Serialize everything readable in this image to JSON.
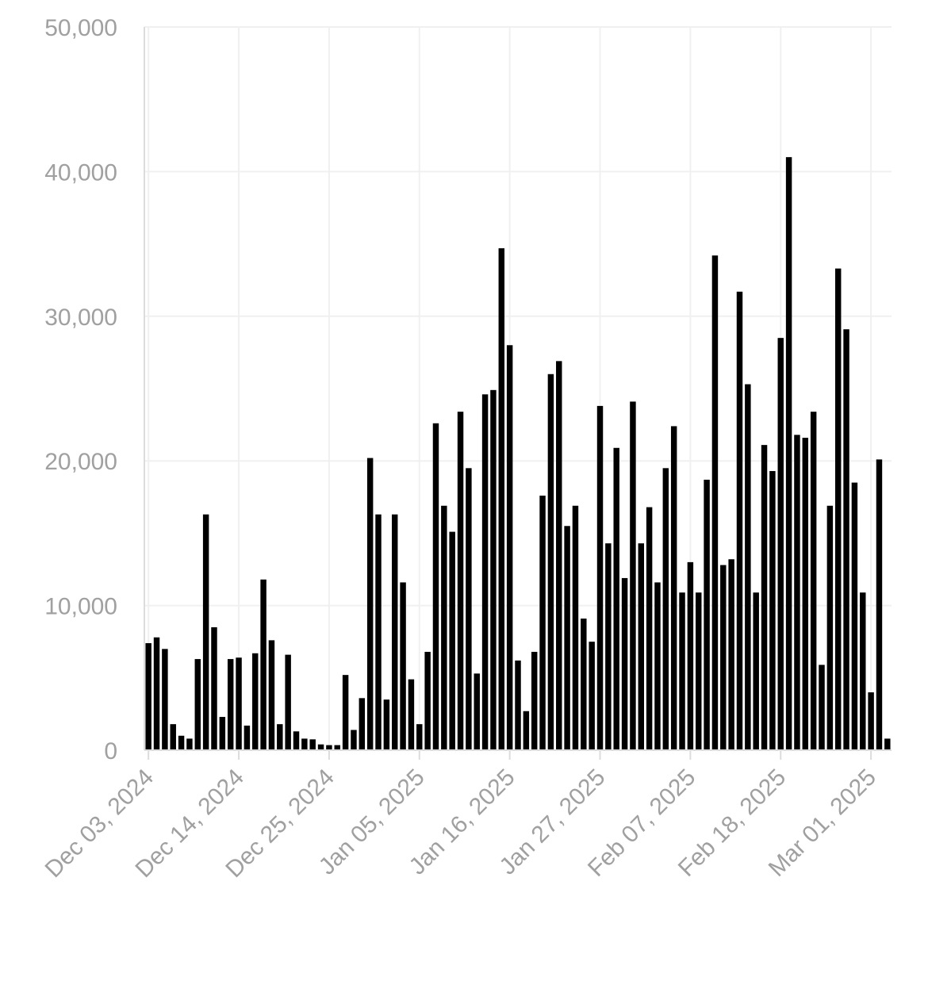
{
  "chart_data": {
    "type": "bar",
    "title": "",
    "xlabel": "",
    "ylabel": "",
    "ylim": [
      0,
      50000
    ],
    "grid": true,
    "legend": "none",
    "bar_color": "#000000",
    "yticks": [
      {
        "value": 0,
        "label": "0"
      },
      {
        "value": 10000,
        "label": "10,000"
      },
      {
        "value": 20000,
        "label": "20,000"
      },
      {
        "value": 30000,
        "label": "30,000"
      },
      {
        "value": 40000,
        "label": "40,000"
      },
      {
        "value": 50000,
        "label": "50,000"
      }
    ],
    "xticks": [
      {
        "date": "2024-12-03",
        "label": "Dec 03, 2024"
      },
      {
        "date": "2024-12-14",
        "label": "Dec 14, 2024"
      },
      {
        "date": "2024-12-25",
        "label": "Dec 25, 2024"
      },
      {
        "date": "2025-01-05",
        "label": "Jan 05, 2025"
      },
      {
        "date": "2025-01-16",
        "label": "Jan 16, 2025"
      },
      {
        "date": "2025-01-27",
        "label": "Jan 27, 2025"
      },
      {
        "date": "2025-02-07",
        "label": "Feb 07, 2025"
      },
      {
        "date": "2025-02-18",
        "label": "Feb 18, 2025"
      },
      {
        "date": "2025-03-01",
        "label": "Mar 01, 2025"
      }
    ],
    "series": [
      {
        "data": [
          [
            "2024-12-03",
            7400
          ],
          [
            "2024-12-04",
            7800
          ],
          [
            "2024-12-05",
            7000
          ],
          [
            "2024-12-06",
            1800
          ],
          [
            "2024-12-07",
            1000
          ],
          [
            "2024-12-08",
            800
          ],
          [
            "2024-12-09",
            6300
          ],
          [
            "2024-12-10",
            16300
          ],
          [
            "2024-12-11",
            8500
          ],
          [
            "2024-12-12",
            2300
          ],
          [
            "2024-12-13",
            6300
          ],
          [
            "2024-12-14",
            6400
          ],
          [
            "2024-12-15",
            1700
          ],
          [
            "2024-12-16",
            6700
          ],
          [
            "2024-12-17",
            11800
          ],
          [
            "2024-12-18",
            7600
          ],
          [
            "2024-12-19",
            1800
          ],
          [
            "2024-12-20",
            6600
          ],
          [
            "2024-12-21",
            1300
          ],
          [
            "2024-12-22",
            800
          ],
          [
            "2024-12-23",
            750
          ],
          [
            "2024-12-24",
            400
          ],
          [
            "2024-12-25",
            350
          ],
          [
            "2024-12-26",
            350
          ],
          [
            "2024-12-27",
            5200
          ],
          [
            "2024-12-28",
            1400
          ],
          [
            "2024-12-29",
            3600
          ],
          [
            "2024-12-30",
            20200
          ],
          [
            "2024-12-31",
            16300
          ],
          [
            "2025-01-01",
            3500
          ],
          [
            "2025-01-02",
            16300
          ],
          [
            "2025-01-03",
            11600
          ],
          [
            "2025-01-04",
            4900
          ],
          [
            "2025-01-05",
            1800
          ],
          [
            "2025-01-06",
            6800
          ],
          [
            "2025-01-07",
            22600
          ],
          [
            "2025-01-08",
            16900
          ],
          [
            "2025-01-09",
            15100
          ],
          [
            "2025-01-10",
            23400
          ],
          [
            "2025-01-11",
            19500
          ],
          [
            "2025-01-12",
            5300
          ],
          [
            "2025-01-13",
            24600
          ],
          [
            "2025-01-14",
            24900
          ],
          [
            "2025-01-15",
            34700
          ],
          [
            "2025-01-16",
            28000
          ],
          [
            "2025-01-17",
            6200
          ],
          [
            "2025-01-18",
            2700
          ],
          [
            "2025-01-19",
            6800
          ],
          [
            "2025-01-20",
            17600
          ],
          [
            "2025-01-21",
            26000
          ],
          [
            "2025-01-22",
            26900
          ],
          [
            "2025-01-23",
            15500
          ],
          [
            "2025-01-24",
            16900
          ],
          [
            "2025-01-25",
            9100
          ],
          [
            "2025-01-26",
            7500
          ],
          [
            "2025-01-27",
            23800
          ],
          [
            "2025-01-28",
            14300
          ],
          [
            "2025-01-29",
            20900
          ],
          [
            "2025-01-30",
            11900
          ],
          [
            "2025-01-31",
            24100
          ],
          [
            "2025-02-01",
            14300
          ],
          [
            "2025-02-02",
            16800
          ],
          [
            "2025-02-03",
            11600
          ],
          [
            "2025-02-04",
            19500
          ],
          [
            "2025-02-05",
            22400
          ],
          [
            "2025-02-06",
            10900
          ],
          [
            "2025-02-07",
            13000
          ],
          [
            "2025-02-08",
            10900
          ],
          [
            "2025-02-09",
            18700
          ],
          [
            "2025-02-10",
            34200
          ],
          [
            "2025-02-11",
            12800
          ],
          [
            "2025-02-12",
            13200
          ],
          [
            "2025-02-13",
            31700
          ],
          [
            "2025-02-14",
            25300
          ],
          [
            "2025-02-15",
            10900
          ],
          [
            "2025-02-16",
            21100
          ],
          [
            "2025-02-17",
            19300
          ],
          [
            "2025-02-18",
            28500
          ],
          [
            "2025-02-19",
            41000
          ],
          [
            "2025-02-20",
            21800
          ],
          [
            "2025-02-21",
            21600
          ],
          [
            "2025-02-22",
            23400
          ],
          [
            "2025-02-23",
            5900
          ],
          [
            "2025-02-24",
            16900
          ],
          [
            "2025-02-25",
            33300
          ],
          [
            "2025-02-26",
            29100
          ],
          [
            "2025-02-27",
            18500
          ],
          [
            "2025-02-28",
            10900
          ],
          [
            "2025-03-01",
            4000
          ],
          [
            "2025-03-02",
            20100
          ],
          [
            "2025-03-03",
            800
          ]
        ]
      }
    ]
  }
}
